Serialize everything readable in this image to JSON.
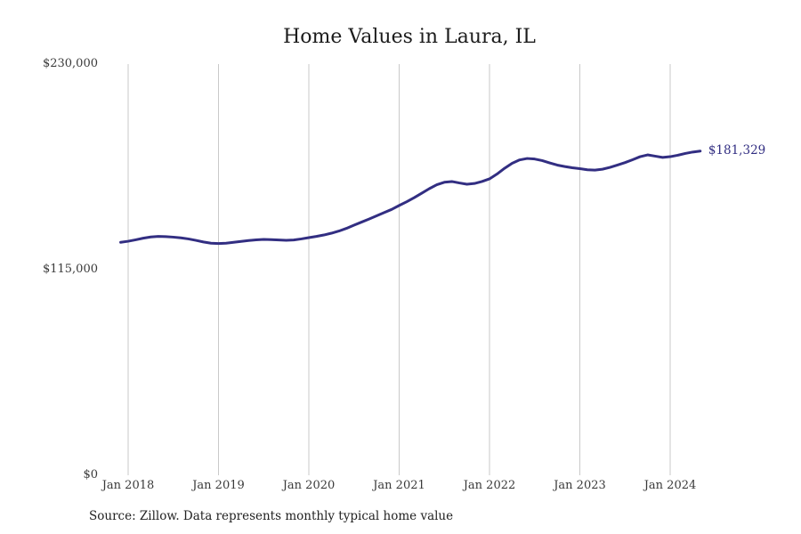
{
  "title": "Home Values in Laura, IL",
  "source_note": "Source: Zillow. Data represents monthly typical home value",
  "end_label": "$181,329",
  "colors": {
    "line": "#322e82",
    "grid": "#c9c9c9",
    "title_text": "#1c1c1c",
    "axis_text": "#3a3a3a",
    "end_label_text": "#322e82",
    "background": "#ffffff"
  },
  "chart_data": {
    "type": "line",
    "title": "Home Values in Laura, IL",
    "xlabel": "",
    "ylabel": "",
    "ylim": [
      0,
      230000
    ],
    "grid": "vertical-only",
    "legend": "none",
    "y_ticks": [
      {
        "value": 0,
        "label": "$0"
      },
      {
        "value": 115000,
        "label": "$115,000"
      },
      {
        "value": 230000,
        "label": "$230,000"
      }
    ],
    "x_ticks": [
      {
        "month": "2018-01",
        "label": "Jan 2018"
      },
      {
        "month": "2019-01",
        "label": "Jan 2019"
      },
      {
        "month": "2020-01",
        "label": "Jan 2020"
      },
      {
        "month": "2021-01",
        "label": "Jan 2021"
      },
      {
        "month": "2022-01",
        "label": "Jan 2022"
      },
      {
        "month": "2023-01",
        "label": "Jan 2023"
      },
      {
        "month": "2024-01",
        "label": "Jan 2024"
      }
    ],
    "end_annotation": {
      "text": "$181,329",
      "value": 181329
    },
    "series": [
      {
        "name": "Monthly typical home value",
        "months": [
          "2017-12",
          "2018-01",
          "2018-02",
          "2018-03",
          "2018-04",
          "2018-05",
          "2018-06",
          "2018-07",
          "2018-08",
          "2018-09",
          "2018-10",
          "2018-11",
          "2018-12",
          "2019-01",
          "2019-02",
          "2019-03",
          "2019-04",
          "2019-05",
          "2019-06",
          "2019-07",
          "2019-08",
          "2019-09",
          "2019-10",
          "2019-11",
          "2019-12",
          "2020-01",
          "2020-02",
          "2020-03",
          "2020-04",
          "2020-05",
          "2020-06",
          "2020-07",
          "2020-08",
          "2020-09",
          "2020-10",
          "2020-11",
          "2020-12",
          "2021-01",
          "2021-02",
          "2021-03",
          "2021-04",
          "2021-05",
          "2021-06",
          "2021-07",
          "2021-08",
          "2021-09",
          "2021-10",
          "2021-11",
          "2021-12",
          "2022-01",
          "2022-02",
          "2022-03",
          "2022-04",
          "2022-05",
          "2022-06",
          "2022-07",
          "2022-08",
          "2022-09",
          "2022-10",
          "2022-11",
          "2022-12",
          "2023-01",
          "2023-02",
          "2023-03",
          "2023-04",
          "2023-05",
          "2023-06",
          "2023-07",
          "2023-08",
          "2023-09",
          "2023-10",
          "2023-11",
          "2023-12",
          "2024-01",
          "2024-02",
          "2024-03",
          "2024-04",
          "2024-05"
        ],
        "values": [
          130300,
          130900,
          131700,
          132600,
          133300,
          133600,
          133500,
          133200,
          132800,
          132200,
          131400,
          130500,
          129800,
          129600,
          129800,
          130300,
          130800,
          131300,
          131700,
          131900,
          131800,
          131600,
          131400,
          131600,
          132200,
          132900,
          133600,
          134400,
          135400,
          136600,
          138100,
          139900,
          141600,
          143300,
          145100,
          146900,
          148700,
          150900,
          153000,
          155300,
          157800,
          160300,
          162500,
          163900,
          164300,
          163500,
          162800,
          163200,
          164300,
          165800,
          168500,
          171700,
          174500,
          176400,
          177200,
          176900,
          176000,
          174700,
          173500,
          172700,
          172000,
          171500,
          170900,
          170700,
          171200,
          172200,
          173500,
          174900,
          176500,
          178200,
          179200,
          178500,
          177800,
          178200,
          179000,
          180000,
          180800,
          181329
        ]
      }
    ]
  }
}
